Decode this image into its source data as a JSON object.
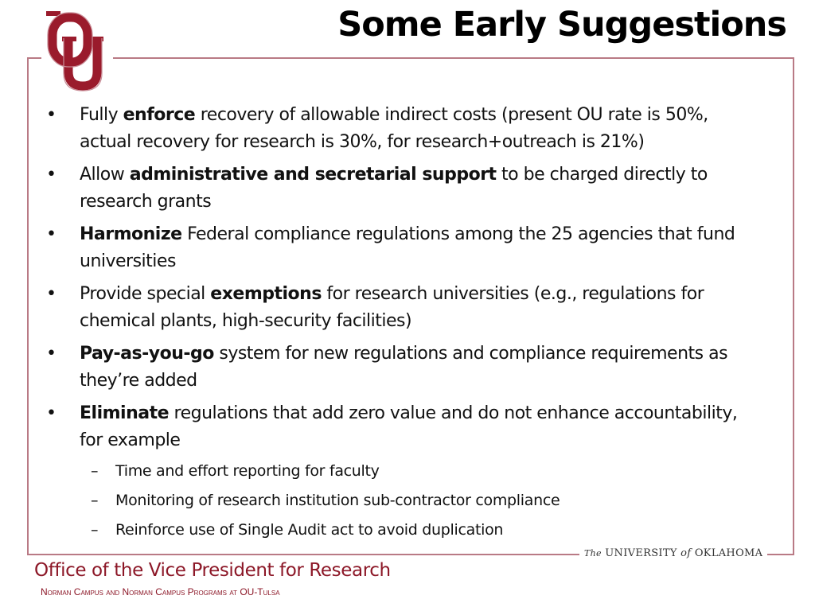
{
  "slide": {
    "title": "Some Early Suggestions"
  },
  "bullets": [
    {
      "pre": "Fully ",
      "bold": "enforce",
      "post": " recovery of allowable indirect costs (present OU rate is 50%, actual recovery for research is 30%, for research+outreach is 21%)"
    },
    {
      "pre": "Allow ",
      "bold": "administrative and secretarial support",
      "post": " to be charged directly to research grants"
    },
    {
      "pre": "",
      "bold": "Harmonize",
      "post": " Federal compliance regulations among the 25 agencies that fund universities"
    },
    {
      "pre": "Provide special ",
      "bold": "exemptions",
      "post": " for research universities (e.g., regulations for chemical plants, high-security facilities)"
    },
    {
      "pre": "",
      "bold": "Pay-as-you-go",
      "post": " system for new regulations and compliance requirements as they’re added"
    },
    {
      "pre": "",
      "bold": "Eliminate",
      "post": " regulations that add zero value and do not enhance accountability, for example"
    }
  ],
  "sub_bullets": [
    "Time and effort reporting for faculty",
    "Monitoring of research institution sub-contractor compliance",
    "Reinforce use of Single Audit act to avoid duplication"
  ],
  "bullet_glyph": "•",
  "dash_glyph": "–",
  "footer": {
    "university_the": "The",
    "university_a": "UNIVERSITY",
    "university_of": "of",
    "university_b": "OKLAHOMA",
    "office": "Office of the Vice President for Research",
    "campus": "Norman Campus and Norman Campus Programs at OU-Tulsa"
  },
  "colors": {
    "crimson": "#8c1727",
    "frame": "#b97a85"
  },
  "icons": {
    "logo": "ou-logo-icon"
  }
}
